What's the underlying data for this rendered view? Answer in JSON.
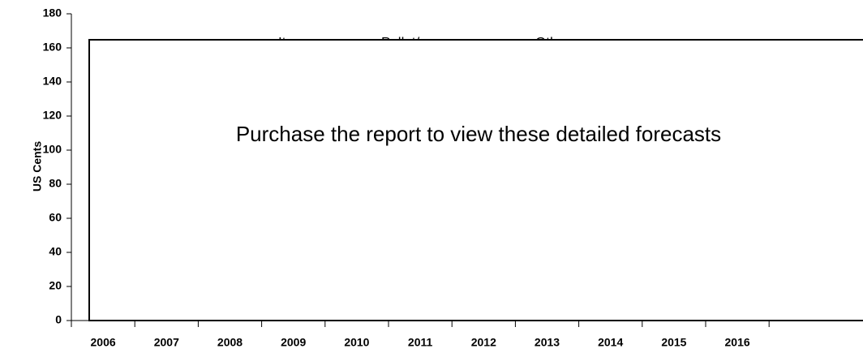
{
  "chart_data": {
    "type": "line",
    "y_label": "US Cents",
    "categories": [
      "2006",
      "2007",
      "2008",
      "2009",
      "2010",
      "2011",
      "2012",
      "2013",
      "2014",
      "2015",
      "2016"
    ],
    "series": [
      {
        "name": "Item",
        "color": "#ffff00"
      },
      {
        "name": "Pallet/case",
        "color": "#cc33cc"
      },
      {
        "name": "Other",
        "color": "#33cc33"
      }
    ],
    "ylim": [
      0,
      180
    ],
    "yticks": [
      0,
      20,
      40,
      60,
      80,
      100,
      120,
      140,
      160,
      180
    ],
    "annotation": "Purchase the report to view these detailed forecasts"
  }
}
